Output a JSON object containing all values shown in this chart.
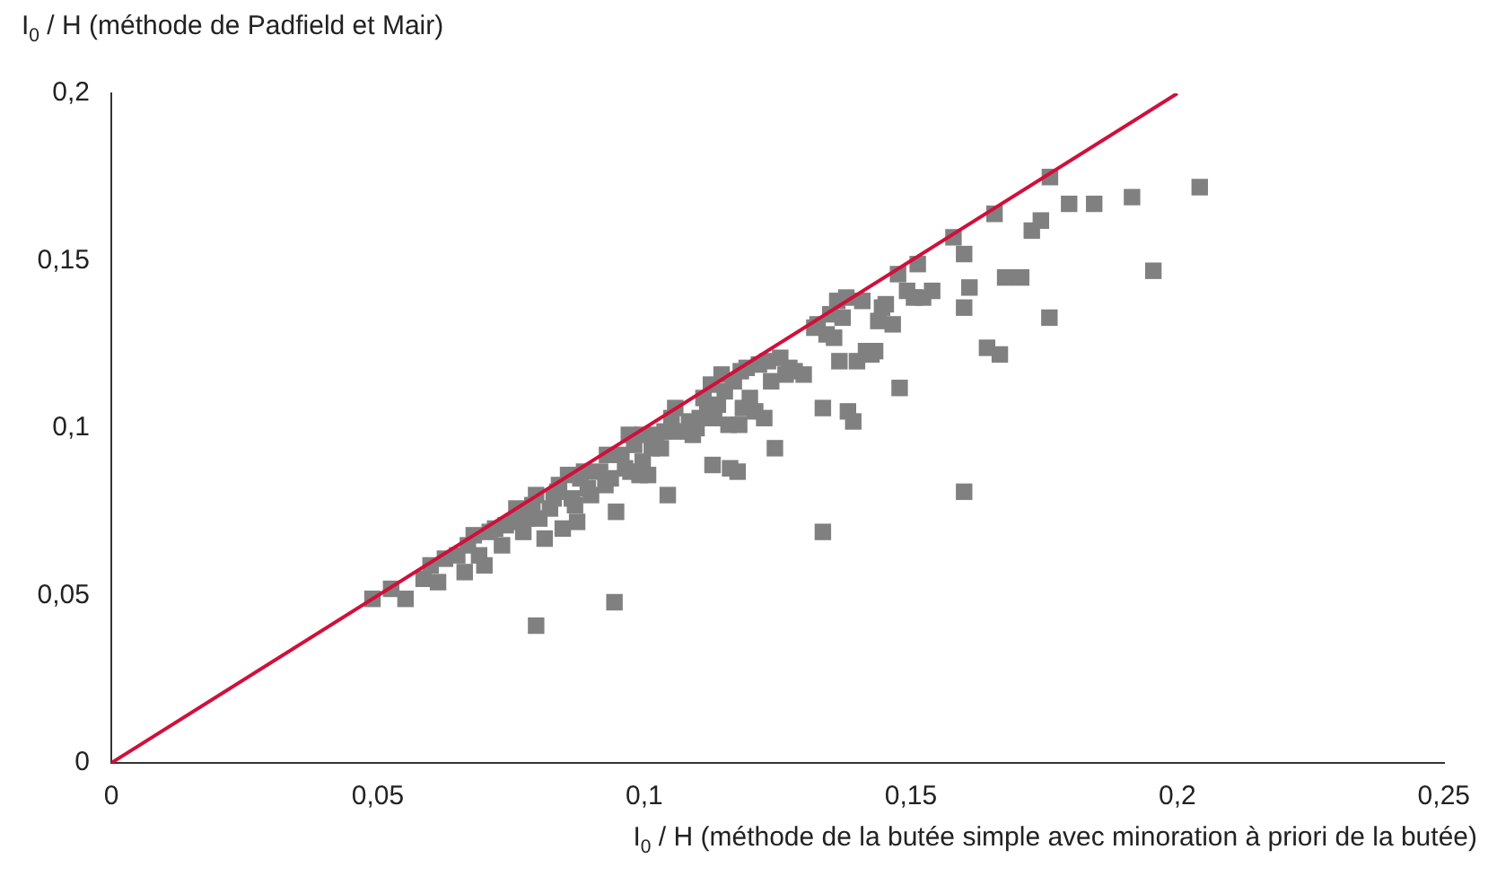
{
  "chart_data": {
    "type": "scatter",
    "ylabel": "I$_{0}$ / H (méthode de Padfield et Mair)",
    "xlabel": "I$_{0}$ / H (méthode de la butée simple avec minoration à priori de la butée)",
    "xlim": [
      0,
      0.25
    ],
    "ylim": [
      0,
      0.2
    ],
    "xticks": [
      {
        "value": 0,
        "label": "0"
      },
      {
        "value": 0.05,
        "label": "0,05"
      },
      {
        "value": 0.1,
        "label": "0,1"
      },
      {
        "value": 0.15,
        "label": "0,15"
      },
      {
        "value": 0.2,
        "label": "0,2"
      },
      {
        "value": 0.25,
        "label": "0,25"
      }
    ],
    "yticks": [
      {
        "value": 0,
        "label": "0"
      },
      {
        "value": 0.05,
        "label": "0,05"
      },
      {
        "value": 0.1,
        "label": "0,1"
      },
      {
        "value": 0.15,
        "label": "0,15"
      },
      {
        "value": 0.2,
        "label": "0,2"
      }
    ],
    "grid": false,
    "legend": false,
    "series": [
      {
        "color": "#808080",
        "marker": "square",
        "x": [
          0.049,
          0.0525,
          0.0552,
          0.0586,
          0.0599,
          0.0613,
          0.0626,
          0.0649,
          0.0663,
          0.0669,
          0.068,
          0.069,
          0.07,
          0.071,
          0.072,
          0.0733,
          0.074,
          0.0753,
          0.076,
          0.0773,
          0.078,
          0.079,
          0.0797,
          0.0797,
          0.0803,
          0.0813,
          0.0823,
          0.083,
          0.0837,
          0.084,
          0.0847,
          0.0857,
          0.0864,
          0.087,
          0.0874,
          0.088,
          0.0887,
          0.0894,
          0.09,
          0.0917,
          0.0927,
          0.093,
          0.0937,
          0.0944,
          0.0947,
          0.0957,
          0.0964,
          0.0971,
          0.0974,
          0.0981,
          0.0991,
          0.0997,
          0.0997,
          0.1007,
          0.1014,
          0.1021,
          0.1031,
          0.1038,
          0.1044,
          0.1051,
          0.1058,
          0.1064,
          0.1084,
          0.1091,
          0.1098,
          0.1104,
          0.1111,
          0.1118,
          0.1125,
          0.1128,
          0.1131,
          0.1138,
          0.1145,
          0.1151,
          0.1158,
          0.1161,
          0.1168,
          0.1175,
          0.1178,
          0.1181,
          0.1185,
          0.1192,
          0.1198,
          0.1208,
          0.1215,
          0.1225,
          0.1232,
          0.1238,
          0.1245,
          0.1255,
          0.1265,
          0.1272,
          0.1282,
          0.1299,
          0.1319,
          0.1325,
          0.1335,
          0.1335,
          0.1342,
          0.1349,
          0.1356,
          0.1362,
          0.1366,
          0.1372,
          0.1379,
          0.1382,
          0.1392,
          0.1399,
          0.1409,
          0.1416,
          0.1426,
          0.1433,
          0.1439,
          0.1446,
          0.1453,
          0.1466,
          0.1476,
          0.1479,
          0.1493,
          0.1506,
          0.1513,
          0.1523,
          0.154,
          0.158,
          0.16,
          0.16,
          0.1657,
          0.1761,
          0.1797,
          0.1844,
          0.1915,
          0.2042,
          0.1744,
          0.1727,
          0.1677,
          0.1707,
          0.1955,
          0.161,
          0.16,
          0.176,
          0.1643,
          0.1667
        ],
        "values": [
          0.049,
          0.052,
          0.049,
          0.055,
          0.059,
          0.054,
          0.061,
          0.062,
          0.057,
          0.065,
          0.068,
          0.062,
          0.059,
          0.069,
          0.07,
          0.065,
          0.071,
          0.072,
          0.076,
          0.069,
          0.073,
          0.077,
          0.08,
          0.041,
          0.073,
          0.067,
          0.076,
          0.079,
          0.081,
          0.083,
          0.07,
          0.086,
          0.079,
          0.077,
          0.072,
          0.085,
          0.087,
          0.082,
          0.08,
          0.087,
          0.083,
          0.092,
          0.085,
          0.048,
          0.075,
          0.092,
          0.088,
          0.098,
          0.087,
          0.095,
          0.086,
          0.098,
          0.09,
          0.086,
          0.094,
          0.098,
          0.094,
          0.099,
          0.08,
          0.103,
          0.106,
          0.099,
          0.102,
          0.098,
          0.1,
          0.103,
          0.109,
          0.106,
          0.113,
          0.089,
          0.103,
          0.107,
          0.116,
          0.111,
          0.101,
          0.088,
          0.114,
          0.087,
          0.101,
          0.117,
          0.106,
          0.118,
          0.109,
          0.105,
          0.119,
          0.103,
          0.12,
          0.114,
          0.094,
          0.121,
          0.116,
          0.118,
          0.117,
          0.116,
          0.13,
          0.131,
          0.069,
          0.106,
          0.128,
          0.134,
          0.127,
          0.138,
          0.12,
          0.133,
          0.139,
          0.105,
          0.102,
          0.12,
          0.138,
          0.123,
          0.122,
          0.123,
          0.132,
          0.136,
          0.137,
          0.131,
          0.146,
          0.112,
          0.141,
          0.139,
          0.149,
          0.139,
          0.141,
          0.157,
          0.081,
          0.152,
          0.164,
          0.175,
          0.167,
          0.167,
          0.169,
          0.172,
          0.162,
          0.159,
          0.145,
          0.145,
          0.147,
          0.142,
          0.136,
          0.133,
          0.124,
          0.122
        ]
      },
      {
        "type": "line",
        "color": "#d0103a",
        "marker": "none",
        "line_style": "solid",
        "x": [
          0,
          0.2
        ],
        "values": [
          0,
          0.2
        ]
      }
    ]
  }
}
